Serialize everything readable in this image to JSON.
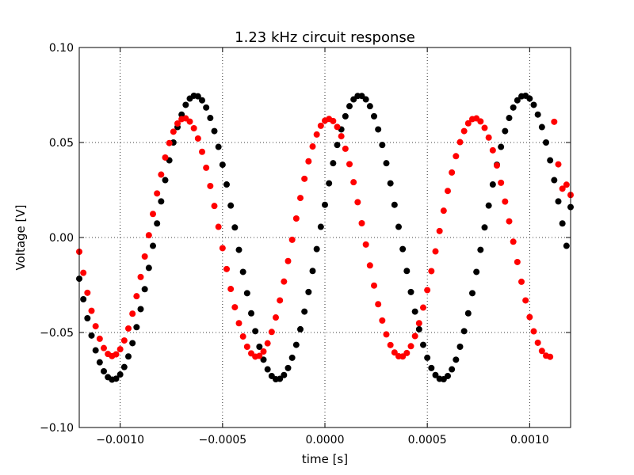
{
  "chart_data": {
    "type": "scatter",
    "title": "1.23 kHz circuit response",
    "xlabel": "time [s]",
    "ylabel": "Voltage [V]",
    "xlim": [
      -0.0012,
      0.0012
    ],
    "ylim": [
      -0.1,
      0.1
    ],
    "grid": true,
    "x_ticks": [
      -0.001,
      -0.0005,
      0.0,
      0.0005,
      0.001
    ],
    "x_tick_labels": [
      "−0.0010",
      "−0.0005",
      "0.0000",
      "0.0005",
      "0.0010"
    ],
    "y_ticks": [
      -0.1,
      -0.05,
      0.0,
      0.05,
      0.1
    ],
    "y_tick_labels": [
      "−0.10",
      "−0.05",
      "0.00",
      "0.05",
      "0.10"
    ],
    "series": [
      {
        "color": "#000000",
        "x": [
          -0.0012,
          -0.00118,
          -0.00116,
          -0.00114,
          -0.00112,
          -0.0011,
          -0.00108,
          -0.00106,
          -0.00104,
          -0.00102,
          -0.001,
          -0.00098,
          -0.00096,
          -0.00094,
          -0.00092,
          -0.0009,
          -0.00088,
          -0.00086,
          -0.00084,
          -0.00082,
          -0.0008,
          -0.00078,
          -0.00076,
          -0.00074,
          -0.00072,
          -0.0007,
          -0.00068,
          -0.00066,
          -0.00064,
          -0.00062,
          -0.0006,
          -0.00058,
          -0.00056,
          -0.00054,
          -0.00052,
          -0.0005,
          -0.00048,
          -0.00046,
          -0.00044,
          -0.00042,
          -0.0004,
          -0.00038,
          -0.00036,
          -0.00034,
          -0.00032,
          -0.0003,
          -0.00028,
          -0.00026,
          -0.00024,
          -0.00022,
          -0.0002,
          -0.00018,
          -0.00016,
          -0.00014,
          -0.00012,
          -0.0001,
          -8e-05,
          -6e-05,
          -4e-05,
          -2e-05,
          0.0,
          2e-05,
          4e-05,
          6e-05,
          8e-05,
          0.0001,
          0.00012,
          0.00014,
          0.00016,
          0.00018,
          0.0002,
          0.00022,
          0.00024,
          0.00026,
          0.00028,
          0.0003,
          0.00032,
          0.00034,
          0.00036,
          0.00038,
          0.0004,
          0.00042,
          0.00044,
          0.00046,
          0.00048,
          0.0005,
          0.00052,
          0.00054,
          0.00056,
          0.00058,
          0.0006,
          0.00062,
          0.00064,
          0.00066,
          0.00068,
          0.0007,
          0.00072,
          0.00074,
          0.00076,
          0.00078,
          0.0008,
          0.00082,
          0.00084,
          0.00086,
          0.00088,
          0.0009,
          0.00092,
          0.00094,
          0.00096,
          0.00098,
          0.001,
          0.00102,
          0.00104,
          0.00106,
          0.00108,
          0.0011,
          0.00112,
          0.00114,
          0.00116,
          0.00118,
          0.0012
        ],
        "y": [
          -0.0217,
          -0.0325,
          -0.0425,
          -0.0516,
          -0.0594,
          -0.0657,
          -0.0704,
          -0.0735,
          -0.0748,
          -0.0743,
          -0.0721,
          -0.0682,
          -0.0626,
          -0.0556,
          -0.0472,
          -0.0377,
          -0.0272,
          -0.016,
          -0.0044,
          0.0074,
          0.019,
          0.0302,
          0.0406,
          0.05,
          0.0581,
          0.0647,
          0.0698,
          0.0731,
          0.0746,
          0.0743,
          0.0722,
          0.0684,
          0.0629,
          0.056,
          0.0477,
          0.0383,
          0.0279,
          0.0168,
          0.0053,
          -0.0065,
          -0.0181,
          -0.0293,
          -0.0399,
          -0.0493,
          -0.0575,
          -0.0643,
          -0.0694,
          -0.0729,
          -0.0746,
          -0.0744,
          -0.0724,
          -0.0687,
          -0.0633,
          -0.0565,
          -0.0483,
          -0.039,
          -0.0287,
          -0.0176,
          -0.0061,
          0.0056,
          0.0172,
          0.0285,
          0.0391,
          0.0487,
          0.0569,
          0.0638,
          0.0691,
          0.0727,
          0.0745,
          0.0745,
          0.0727,
          0.0691,
          0.0638,
          0.0569,
          0.0487,
          0.0391,
          0.0285,
          0.0172,
          0.0056,
          -0.0061,
          -0.0176,
          -0.0287,
          -0.039,
          -0.0483,
          -0.0565,
          -0.0633,
          -0.0687,
          -0.0724,
          -0.0744,
          -0.0746,
          -0.0729,
          -0.0694,
          -0.0643,
          -0.0575,
          -0.0493,
          -0.0399,
          -0.0293,
          -0.0181,
          -0.0065,
          0.0053,
          0.0168,
          0.0279,
          0.0383,
          0.0477,
          0.056,
          0.0629,
          0.0684,
          0.0722,
          0.0743,
          0.0746,
          0.0731,
          0.0698,
          0.0647,
          0.0581,
          0.05,
          0.0406,
          0.0302,
          0.019,
          0.0074,
          -0.0044,
          0.016
        ]
      },
      {
        "color": "#ff0000",
        "x": [
          -0.0012,
          -0.00118,
          -0.00116,
          -0.00114,
          -0.00112,
          -0.0011,
          -0.00108,
          -0.00106,
          -0.00104,
          -0.00102,
          -0.001,
          -0.00098,
          -0.00096,
          -0.00094,
          -0.00092,
          -0.0009,
          -0.00088,
          -0.00086,
          -0.00084,
          -0.00082,
          -0.0008,
          -0.00078,
          -0.00076,
          -0.00074,
          -0.00072,
          -0.0007,
          -0.00068,
          -0.00066,
          -0.00064,
          -0.00062,
          -0.0006,
          -0.00058,
          -0.00056,
          -0.00054,
          -0.00052,
          -0.0005,
          -0.00048,
          -0.00046,
          -0.00044,
          -0.00042,
          -0.0004,
          -0.00038,
          -0.00036,
          -0.00034,
          -0.00032,
          -0.0003,
          -0.00028,
          -0.00026,
          -0.00024,
          -0.00022,
          -0.0002,
          -0.00018,
          -0.00016,
          -0.00014,
          -0.00012,
          -0.0001,
          -8e-05,
          -6e-05,
          -4e-05,
          -2e-05,
          0.0,
          2e-05,
          4e-05,
          6e-05,
          8e-05,
          0.0001,
          0.00012,
          0.00014,
          0.00016,
          0.00018,
          0.0002,
          0.00022,
          0.00024,
          0.00026,
          0.00028,
          0.0003,
          0.00032,
          0.00034,
          0.00036,
          0.00038,
          0.0004,
          0.00042,
          0.00044,
          0.00046,
          0.00048,
          0.0005,
          0.00052,
          0.00054,
          0.00056,
          0.00058,
          0.0006,
          0.00062,
          0.00064,
          0.00066,
          0.00068,
          0.0007,
          0.00072,
          0.00074,
          0.00076,
          0.00078,
          0.0008,
          0.00082,
          0.00084,
          0.00086,
          0.00088,
          0.0009,
          0.00092,
          0.00094,
          0.00096,
          0.00098,
          0.001,
          0.00102,
          0.00104,
          0.00106,
          0.00108,
          0.0011,
          0.00112,
          0.00114,
          0.00116,
          0.00118,
          0.0012
        ],
        "y": [
          -0.0075,
          -0.0186,
          -0.0291,
          -0.0386,
          -0.0467,
          -0.0533,
          -0.0582,
          -0.0613,
          -0.0624,
          -0.0615,
          -0.0588,
          -0.0542,
          -0.0479,
          -0.0401,
          -0.0309,
          -0.0208,
          -0.01,
          0.0012,
          0.0124,
          0.0232,
          0.0331,
          0.0421,
          0.0497,
          0.0557,
          0.06,
          0.0623,
          0.0627,
          0.061,
          0.0575,
          0.0521,
          0.0451,
          0.0367,
          0.0271,
          0.0166,
          0.0056,
          -0.0056,
          -0.0166,
          -0.0271,
          -0.0367,
          -0.0451,
          -0.0521,
          -0.0575,
          -0.061,
          -0.0627,
          -0.0623,
          -0.06,
          -0.0557,
          -0.0497,
          -0.0421,
          -0.0331,
          -0.0232,
          -0.0124,
          -0.0012,
          0.01,
          0.0208,
          0.0309,
          0.0401,
          0.0479,
          0.0542,
          0.0588,
          0.0615,
          0.0624,
          0.0613,
          0.0582,
          0.0533,
          0.0467,
          0.0386,
          0.0291,
          0.0186,
          0.0075,
          -0.0037,
          -0.0147,
          -0.0253,
          -0.0351,
          -0.0437,
          -0.051,
          -0.0566,
          -0.0605,
          -0.0625,
          -0.0626,
          -0.0608,
          -0.0572,
          -0.0519,
          -0.0451,
          -0.0369,
          -0.0277,
          -0.0177,
          -0.0073,
          0.0034,
          0.0141,
          0.0245,
          0.0342,
          0.0428,
          0.0502,
          0.056,
          0.0601,
          0.0623,
          0.0627,
          0.0611,
          0.0577,
          0.0526,
          0.0459,
          0.0379,
          0.0288,
          0.0189,
          0.0085,
          -0.0022,
          -0.0129,
          -0.0233,
          -0.0331,
          -0.0419,
          -0.0494,
          -0.0554,
          -0.0597,
          -0.0622,
          -0.0628,
          0.0609,
          0.0385,
          0.0257,
          0.0278,
          0.0224
        ]
      }
    ]
  }
}
